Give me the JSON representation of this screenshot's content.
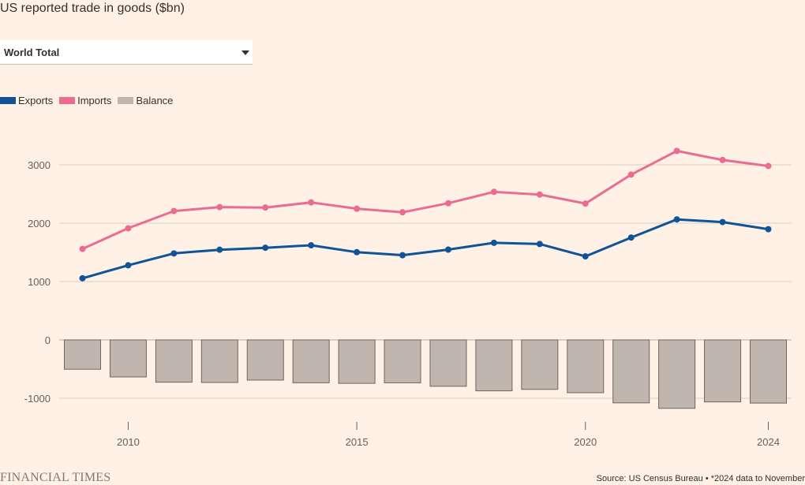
{
  "header": {
    "title": "US reported trade in goods ($bn)"
  },
  "dropdown": {
    "selected": "World Total"
  },
  "legend": [
    {
      "label": "Exports",
      "color": "#0f5499"
    },
    {
      "label": "Imports",
      "color": "#ec6b93"
    },
    {
      "label": "Balance",
      "color": "#c0b6ae"
    }
  ],
  "chart_data": {
    "type": "line",
    "title": "US reported trade in goods ($bn)",
    "x": [
      2009,
      2010,
      2011,
      2012,
      2013,
      2014,
      2015,
      2016,
      2017,
      2018,
      2019,
      2020,
      2021,
      2022,
      2023,
      2024
    ],
    "series": [
      {
        "name": "Exports",
        "type": "line",
        "color": "#0f5499",
        "values": [
          1056,
          1278,
          1482,
          1545,
          1579,
          1621,
          1503,
          1451,
          1547,
          1664,
          1643,
          1431,
          1754,
          2065,
          2019,
          1897
        ]
      },
      {
        "name": "Imports",
        "type": "line",
        "color": "#ec6b93",
        "values": [
          1559,
          1913,
          2208,
          2276,
          2268,
          2356,
          2248,
          2187,
          2342,
          2537,
          2491,
          2336,
          2833,
          3238,
          3082,
          2980
        ]
      },
      {
        "name": "Balance",
        "type": "bar",
        "color": "#c0b6ae",
        "values": [
          -503,
          -635,
          -725,
          -730,
          -689,
          -735,
          -745,
          -736,
          -795,
          -873,
          -848,
          -905,
          -1079,
          -1173,
          -1063,
          -1083
        ]
      }
    ],
    "xticks": [
      2010,
      2015,
      2020,
      2024
    ],
    "yticks": [
      -1000,
      0,
      1000,
      2000,
      3000
    ],
    "ylim": [
      -1400,
      3600
    ],
    "xlabel": "",
    "ylabel": "",
    "grid": true
  },
  "footer": {
    "brand": "FINANCIAL TIMES",
    "source": "Source: US Census Bureau • *2024 data to November"
  }
}
